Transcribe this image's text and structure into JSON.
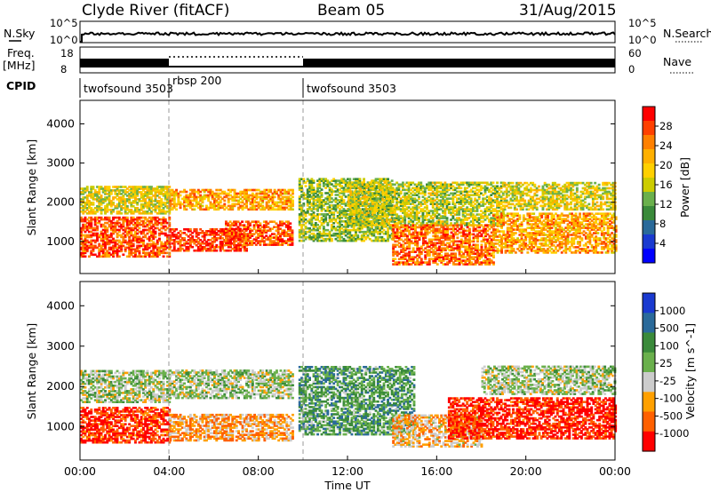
{
  "header": {
    "station": "Clyde River (fitACF)",
    "beam": "Beam 05",
    "date": "31/Aug/2015"
  },
  "summary": {
    "left_label_1": "N.Sky",
    "left_label_2_line1": "Freq.",
    "left_label_2_line2": "[MHz]",
    "left_label_3": "CPID",
    "right_label_1": "N.Search",
    "right_label_2": "Nave",
    "nsky_ticks": [
      "10^5",
      "10^0"
    ],
    "freq_ticks": [
      "18",
      "8"
    ],
    "nave_ticks": [
      "60",
      "0"
    ],
    "cpid_segments": [
      {
        "label": "twofsound 3503",
        "start_hour": 0,
        "end_hour": 4
      },
      {
        "label": "rbsp 200",
        "start_hour": 4,
        "end_hour": 10
      },
      {
        "label": "twofsound 3503",
        "start_hour": 10,
        "end_hour": 24
      }
    ]
  },
  "chart_data": [
    {
      "type": "heatmap",
      "panel": "power",
      "xlabel": "Time UT",
      "ylabel": "Slant Range [km]",
      "x_range_hours": [
        0,
        24
      ],
      "x_tick_labels": [
        "00:00",
        "04:00",
        "08:00",
        "12:00",
        "16:00",
        "20:00",
        "00:00"
      ],
      "ylim": [
        180,
        4600
      ],
      "y_ticks": [
        1000,
        2000,
        3000,
        4000
      ],
      "colorbar_label": "Power [dB]",
      "colorbar_ticks": [
        "28",
        "24",
        "20",
        "16",
        "12",
        "8",
        "4"
      ],
      "colorbar_colors": [
        "#ff0000",
        "#ff4000",
        "#ff8000",
        "#ffb000",
        "#ffd000",
        "#cccc00",
        "#6ab04c",
        "#3a8a3a",
        "#2a6a9a",
        "#1a3ad0",
        "#0000ff"
      ],
      "echo_regions": [
        {
          "t0": 0.0,
          "t1": 4.0,
          "r0": 600,
          "r1": 1600,
          "level": 0.85
        },
        {
          "t0": 0.0,
          "t1": 4.0,
          "r0": 1700,
          "r1": 2400,
          "level": 0.55
        },
        {
          "t0": 4.0,
          "t1": 7.5,
          "r0": 750,
          "r1": 1300,
          "level": 0.9
        },
        {
          "t0": 4.0,
          "t1": 9.5,
          "r0": 1800,
          "r1": 2300,
          "level": 0.7
        },
        {
          "t0": 6.5,
          "t1": 9.5,
          "r0": 900,
          "r1": 1500,
          "level": 0.85
        },
        {
          "t0": 9.8,
          "t1": 14.0,
          "r0": 1000,
          "r1": 2600,
          "level": 0.45
        },
        {
          "t0": 12.0,
          "t1": 19.0,
          "r0": 1400,
          "r1": 2500,
          "level": 0.5
        },
        {
          "t0": 14.0,
          "t1": 18.5,
          "r0": 400,
          "r1": 1400,
          "level": 0.8
        },
        {
          "t0": 18.5,
          "t1": 24.0,
          "r0": 700,
          "r1": 1700,
          "level": 0.7
        },
        {
          "t0": 19.0,
          "t1": 24.0,
          "r0": 1800,
          "r1": 2500,
          "level": 0.55
        }
      ]
    },
    {
      "type": "heatmap",
      "panel": "velocity",
      "xlabel": "Time UT",
      "ylabel": "Slant Range [km]",
      "x_range_hours": [
        0,
        24
      ],
      "x_tick_labels": [
        "00:00",
        "04:00",
        "08:00",
        "12:00",
        "16:00",
        "20:00",
        "00:00"
      ],
      "ylim": [
        180,
        4600
      ],
      "y_ticks": [
        1000,
        2000,
        3000,
        4000
      ],
      "colorbar_label": "Velocity [m s^-1]",
      "colorbar_ticks": [
        "1000",
        "500",
        "100",
        "25",
        "-25",
        "-100",
        "-500",
        "-1000"
      ],
      "colorbar_colors": [
        "#1a3ad0",
        "#2a6a9a",
        "#3a8a3a",
        "#6ab04c",
        "#cccccc",
        "#ffa000",
        "#ff6000",
        "#ff0000"
      ],
      "echo_regions": [
        {
          "t0": 0.0,
          "t1": 4.0,
          "r0": 600,
          "r1": 1500,
          "level": 0.1
        },
        {
          "t0": 0.0,
          "t1": 4.0,
          "r0": 1600,
          "r1": 2400,
          "level": 0.5
        },
        {
          "t0": 4.0,
          "t1": 9.5,
          "r0": 650,
          "r1": 1300,
          "level": 0.3
        },
        {
          "t0": 4.0,
          "t1": 9.5,
          "r0": 1700,
          "r1": 2400,
          "level": 0.5
        },
        {
          "t0": 9.8,
          "t1": 15.0,
          "r0": 800,
          "r1": 2500,
          "level": 0.65
        },
        {
          "t0": 14.0,
          "t1": 18.0,
          "r0": 500,
          "r1": 1300,
          "level": 0.35
        },
        {
          "t0": 16.5,
          "t1": 24.0,
          "r0": 700,
          "r1": 1700,
          "level": 0.08
        },
        {
          "t0": 18.0,
          "t1": 24.0,
          "r0": 1800,
          "r1": 2500,
          "level": 0.5
        }
      ]
    }
  ]
}
